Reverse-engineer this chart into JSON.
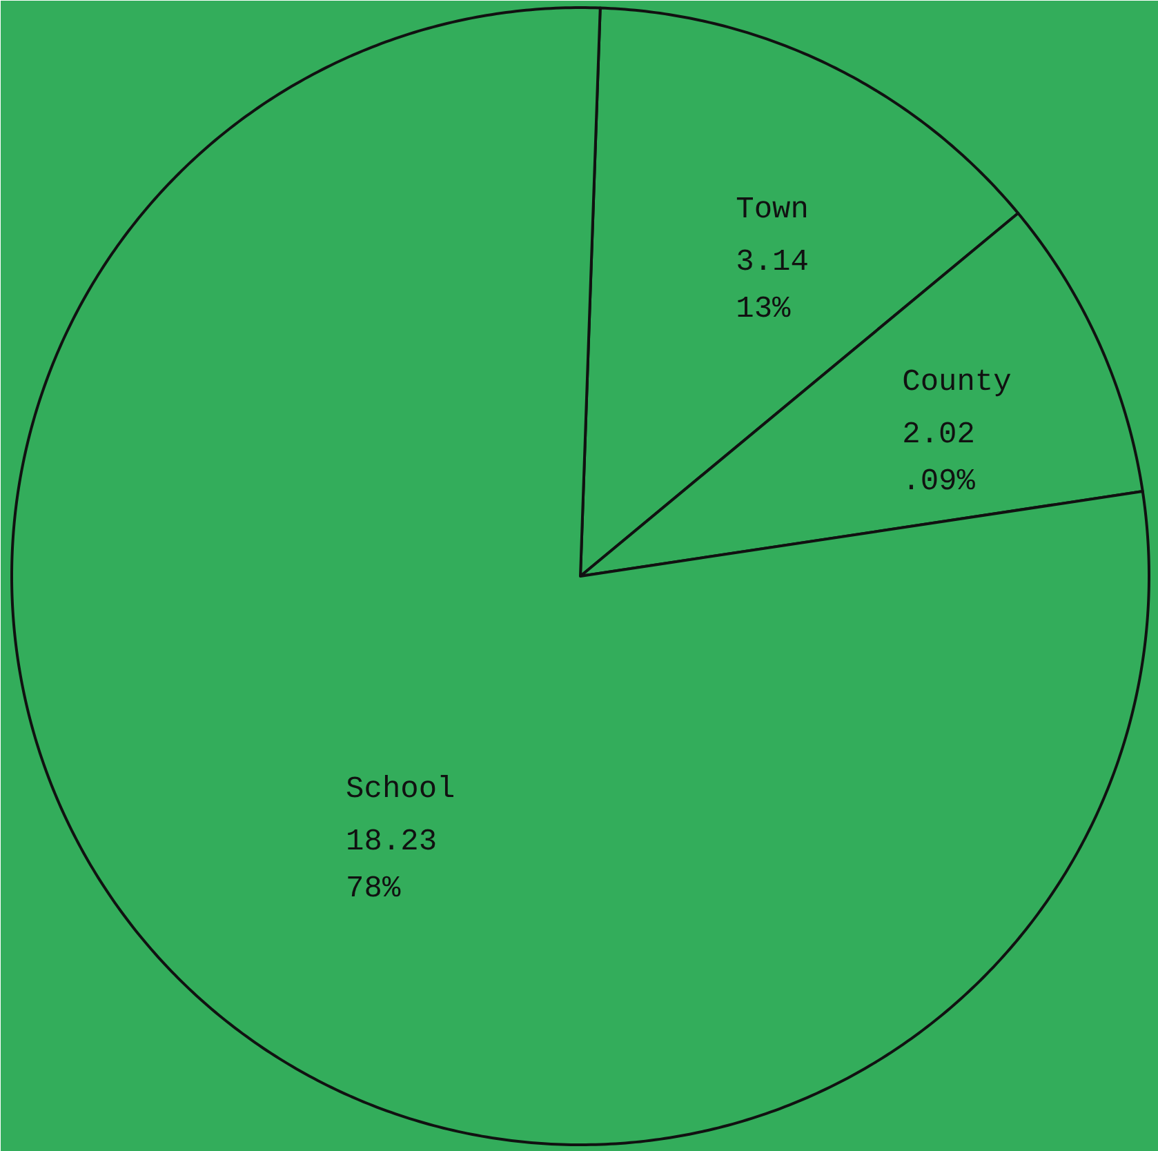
{
  "chart_data": {
    "type": "pie",
    "categories": [
      "Town",
      "County",
      "School"
    ],
    "values": [
      3.14,
      2.02,
      18.23
    ],
    "value_labels": [
      "3.14\n13%",
      "2.02\n.09%",
      "18.23\n78%"
    ],
    "colors": [
      "#33ad5b",
      "#33ad5b",
      "#33ad5b"
    ]
  }
}
